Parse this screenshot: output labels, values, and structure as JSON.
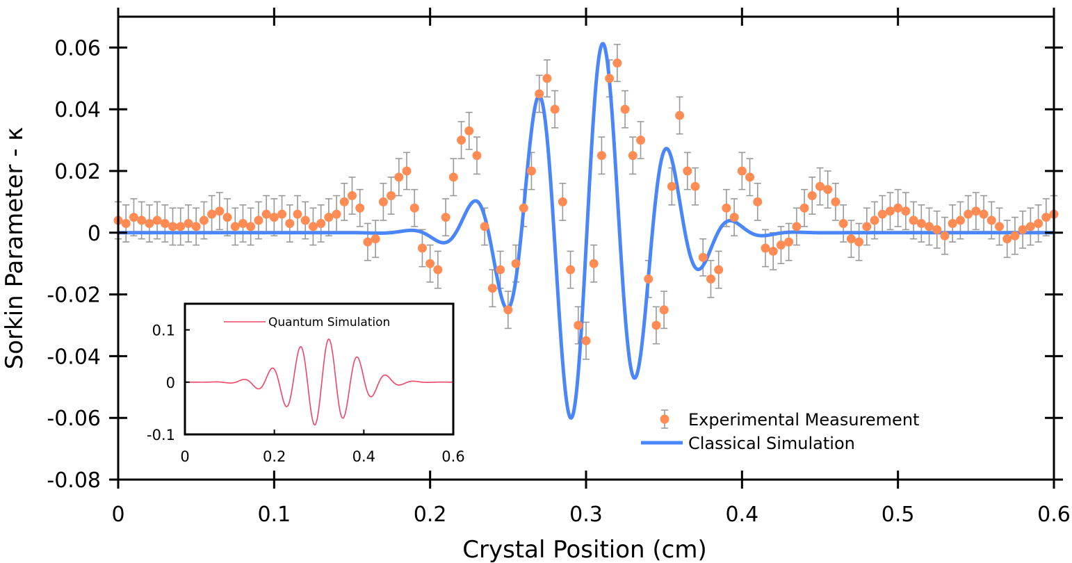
{
  "chart_data": [
    {
      "type": "scatter",
      "name": "main",
      "xlabel": "Crystal Position (cm)",
      "ylabel": "Sorkin Parameter - κ",
      "xlim": [
        0,
        0.6
      ],
      "ylim": [
        -0.08,
        0.07
      ],
      "xticks": [
        "0",
        "0.1",
        "0.2",
        "0.3",
        "0.4",
        "0.5",
        "0.6"
      ],
      "xtick_values": [
        0,
        0.1,
        0.2,
        0.3,
        0.4,
        0.5,
        0.6
      ],
      "yticks": [
        "0.06",
        "0.04",
        "0.02",
        "0",
        "-0.02",
        "-0.04",
        "-0.06",
        "-0.08"
      ],
      "ytick_values": [
        0.06,
        0.04,
        0.02,
        0,
        -0.02,
        -0.04,
        -0.06,
        -0.08
      ],
      "colors": {
        "experimental": "#ff8c55",
        "errorbar": "#999999",
        "classical": "#4a86f7"
      },
      "legend": [
        "Experimental Measurement",
        "Classical Simulation"
      ],
      "series": [
        {
          "name": "Experimental Measurement",
          "kind": "points_with_error",
          "x": [
            0.0,
            0.005,
            0.01,
            0.015,
            0.02,
            0.025,
            0.03,
            0.035,
            0.04,
            0.045,
            0.05,
            0.055,
            0.06,
            0.065,
            0.07,
            0.075,
            0.08,
            0.085,
            0.09,
            0.095,
            0.1,
            0.105,
            0.11,
            0.115,
            0.12,
            0.125,
            0.13,
            0.135,
            0.14,
            0.145,
            0.15,
            0.155,
            0.16,
            0.165,
            0.17,
            0.175,
            0.18,
            0.185,
            0.19,
            0.195,
            0.2,
            0.205,
            0.21,
            0.215,
            0.22,
            0.225,
            0.23,
            0.235,
            0.24,
            0.245,
            0.25,
            0.255,
            0.26,
            0.265,
            0.27,
            0.275,
            0.28,
            0.285,
            0.29,
            0.295,
            0.3,
            0.305,
            0.31,
            0.315,
            0.32,
            0.325,
            0.33,
            0.335,
            0.34,
            0.345,
            0.35,
            0.355,
            0.36,
            0.365,
            0.37,
            0.375,
            0.38,
            0.385,
            0.39,
            0.395,
            0.4,
            0.405,
            0.41,
            0.415,
            0.42,
            0.425,
            0.43,
            0.435,
            0.44,
            0.445,
            0.45,
            0.455,
            0.46,
            0.465,
            0.47,
            0.475,
            0.48,
            0.485,
            0.49,
            0.495,
            0.5,
            0.505,
            0.51,
            0.515,
            0.52,
            0.525,
            0.53,
            0.535,
            0.54,
            0.545,
            0.55,
            0.555,
            0.56,
            0.565,
            0.57,
            0.575,
            0.58,
            0.585,
            0.59,
            0.595,
            0.6
          ],
          "y": [
            0.004,
            0.003,
            0.005,
            0.004,
            0.003,
            0.004,
            0.003,
            0.002,
            0.002,
            0.003,
            0.002,
            0.004,
            0.006,
            0.007,
            0.005,
            0.002,
            0.003,
            0.002,
            0.004,
            0.006,
            0.005,
            0.006,
            0.003,
            0.006,
            0.004,
            0.002,
            0.003,
            0.005,
            0.006,
            0.01,
            0.012,
            0.008,
            -0.003,
            -0.002,
            0.01,
            0.012,
            0.018,
            0.02,
            0.008,
            -0.005,
            -0.01,
            -0.012,
            0.005,
            0.018,
            0.03,
            0.033,
            0.025,
            0.002,
            -0.018,
            -0.012,
            -0.025,
            -0.01,
            0.008,
            0.02,
            0.045,
            0.05,
            0.04,
            0.01,
            -0.012,
            -0.03,
            -0.035,
            -0.01,
            0.025,
            0.05,
            0.055,
            0.04,
            0.025,
            0.03,
            -0.015,
            -0.03,
            -0.025,
            0.015,
            0.038,
            0.02,
            0.015,
            -0.008,
            -0.015,
            -0.012,
            0.008,
            0.005,
            0.02,
            0.018,
            0.01,
            -0.005,
            -0.006,
            -0.004,
            -0.003,
            0.002,
            0.008,
            0.012,
            0.015,
            0.014,
            0.01,
            0.003,
            -0.002,
            -0.003,
            0.002,
            0.004,
            0.006,
            0.007,
            0.008,
            0.007,
            0.004,
            0.003,
            0.002,
            0.001,
            -0.001,
            0.003,
            0.004,
            0.006,
            0.007,
            0.006,
            0.004,
            0.002,
            -0.002,
            -0.001,
            0.001,
            0.002,
            0.003,
            0.005,
            0.006
          ],
          "error": 0.006
        },
        {
          "name": "Classical Simulation",
          "kind": "line",
          "function": "0.0629*exp(-((x-0.302)/0.055)^2)*cos(2*pi*(x-0.311)/0.042)"
        }
      ]
    },
    {
      "type": "line",
      "name": "inset",
      "xlim": [
        0,
        0.6
      ],
      "ylim": [
        -0.1,
        0.15
      ],
      "xticks": [
        "0",
        "0.2",
        "0.4",
        "0.6"
      ],
      "xtick_values": [
        0,
        0.2,
        0.4,
        0.6
      ],
      "yticks": [
        "0.1",
        "0",
        "-0.1"
      ],
      "ytick_values": [
        0.1,
        0,
        -0.1
      ],
      "colors": {
        "quantum": "#ee4466"
      },
      "legend": [
        "Quantum Simulation"
      ],
      "series": [
        {
          "name": "Quantum Simulation",
          "kind": "line",
          "function": "0.084*exp(-((x-0.307)/0.105)^2)*cos(2*pi*(x-0.322)/0.064)"
        }
      ]
    }
  ]
}
